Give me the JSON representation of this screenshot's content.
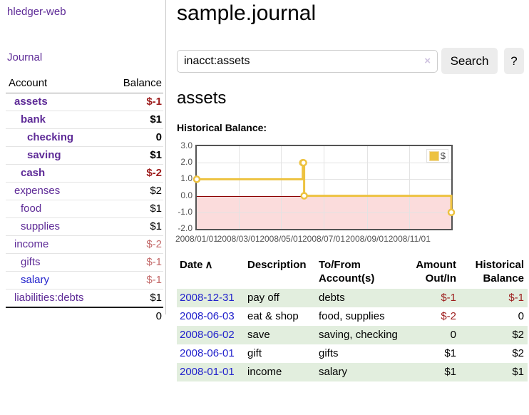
{
  "app": {
    "title": "hledger-web"
  },
  "sidebar": {
    "journal_label": "Journal",
    "accounts": {
      "header_account": "Account",
      "header_balance": "Balance",
      "rows": [
        {
          "name": "assets",
          "balance": "$-1"
        },
        {
          "name": "bank",
          "balance": "$1"
        },
        {
          "name": "checking",
          "balance": "0"
        },
        {
          "name": "saving",
          "balance": "$1"
        },
        {
          "name": "cash",
          "balance": "$-2"
        },
        {
          "name": "expenses",
          "balance": "$2"
        },
        {
          "name": "food",
          "balance": "$1"
        },
        {
          "name": "supplies",
          "balance": "$1"
        },
        {
          "name": "income",
          "balance": "$-2"
        },
        {
          "name": "gifts",
          "balance": "$-1"
        },
        {
          "name": "salary",
          "balance": "$-1"
        },
        {
          "name": "liabilities:debts",
          "balance": "$1"
        }
      ],
      "total_balance": "0"
    }
  },
  "main": {
    "title": "sample.journal",
    "search": {
      "value": "inacct:assets",
      "clear_icon": "×",
      "button_label": "Search",
      "help_label": "?"
    },
    "account_heading": "assets",
    "chart_title": "Historical Balance:",
    "register": {
      "headers": {
        "date": "Date",
        "sort_icon": "∧",
        "description": "Description",
        "accounts": "To/From Account(s)",
        "amount": "Amount Out/In",
        "balance": "Historical Balance"
      },
      "rows": [
        {
          "date": "2008-12-31",
          "description": "pay off",
          "accounts": "debts",
          "amount": "$-1",
          "balance": "$-1"
        },
        {
          "date": "2008-06-03",
          "description": "eat & shop",
          "accounts": "food, supplies",
          "amount": "$-2",
          "balance": "0"
        },
        {
          "date": "2008-06-02",
          "description": "save",
          "accounts": "saving, checking",
          "amount": "0",
          "balance": "$2"
        },
        {
          "date": "2008-06-01",
          "description": "gift",
          "accounts": "gifts",
          "amount": "$1",
          "balance": "$2"
        },
        {
          "date": "2008-01-01",
          "description": "income",
          "accounts": "salary",
          "amount": "$1",
          "balance": "$1"
        }
      ]
    }
  },
  "chart_data": {
    "type": "line",
    "step": true,
    "title": "Historical Balance:",
    "xrange": [
      "2008-01-01",
      "2008-12-31"
    ],
    "ylim": [
      -2,
      3
    ],
    "yticks": [
      3,
      2,
      1,
      0,
      -1,
      -2
    ],
    "xticks": [
      "2008/01/01",
      "2008/03/01",
      "2008/05/01",
      "2008/07/01",
      "2008/09/01",
      "2008/11/01"
    ],
    "legend": {
      "position": "top-right"
    },
    "series": [
      {
        "name": "$",
        "color": "#edc240",
        "points": [
          [
            "2008-01-01",
            1
          ],
          [
            "2008-06-01",
            2
          ],
          [
            "2008-06-02",
            2
          ],
          [
            "2008-06-03",
            0
          ],
          [
            "2008-12-31",
            -1
          ]
        ]
      }
    ],
    "negative_region_fill": "#fbdcdc",
    "zero_line_color": "#8b0000",
    "grid": true
  }
}
